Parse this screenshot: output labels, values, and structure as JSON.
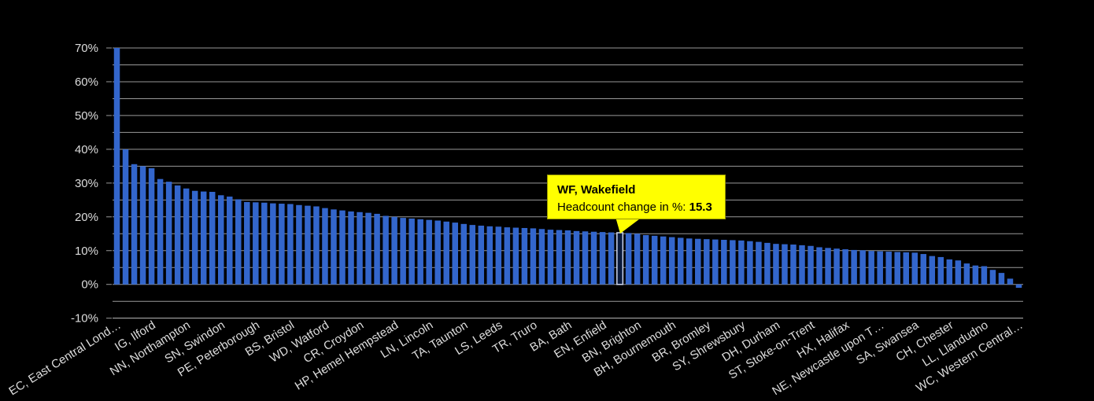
{
  "chart_data": {
    "type": "bar",
    "title": "",
    "xlabel": "",
    "ylabel": "Headcount change in %",
    "ylim": [
      -10,
      70
    ],
    "y_tick_step": 10,
    "y_grid_step": 5,
    "y_tick_suffix": "%",
    "grid": "on",
    "legend": "off",
    "values": [
      70,
      40,
      35.6,
      35,
      34.4,
      31.2,
      30.4,
      29.3,
      28.4,
      27.7,
      27.5,
      27.4,
      26.4,
      26,
      25.2,
      24.4,
      24.3,
      24.2,
      24,
      23.9,
      23.8,
      23.5,
      23.3,
      23.1,
      22.6,
      22.2,
      21.9,
      21.6,
      21.4,
      21.2,
      20.9,
      20.3,
      20,
      19.7,
      19.5,
      19.3,
      19.1,
      18.9,
      18.6,
      18.3,
      17.9,
      17.6,
      17.4,
      17.2,
      17.1,
      16.9,
      16.8,
      16.7,
      16.6,
      16.4,
      16.2,
      16.1,
      16,
      15.8,
      15.7,
      15.6,
      15.5,
      15.4,
      15.3,
      15.2,
      15,
      14.6,
      14.4,
      14.2,
      14,
      13.8,
      13.6,
      13.5,
      13.4,
      13.3,
      13.2,
      13.1,
      13,
      12.8,
      12.6,
      12.3,
      12,
      11.9,
      11.8,
      11.6,
      11.4,
      11,
      10.8,
      10.6,
      10.4,
      10.2,
      10.1,
      9.9,
      9.8,
      9.7,
      9.6,
      9.5,
      9.4,
      9,
      8.4,
      8.1,
      7.4,
      7.1,
      6.2,
      5.6,
      5.4,
      4.3,
      3.4,
      1.7,
      -1
    ],
    "x_tick_labels": [
      {
        "index": 0,
        "label": "EC, East Central Lond…"
      },
      {
        "index": 4,
        "label": "IG, Ilford"
      },
      {
        "index": 8,
        "label": "NN, Northampton"
      },
      {
        "index": 12,
        "label": "SN, Swindon"
      },
      {
        "index": 16,
        "label": "PE, Peterborough"
      },
      {
        "index": 20,
        "label": "BS, Bristol"
      },
      {
        "index": 24,
        "label": "WD, Watford"
      },
      {
        "index": 28,
        "label": "CR, Croydon"
      },
      {
        "index": 32,
        "label": "HP, Hemel Hempstead"
      },
      {
        "index": 36,
        "label": "LN, Lincoln"
      },
      {
        "index": 40,
        "label": "TA, Taunton"
      },
      {
        "index": 44,
        "label": "LS, Leeds"
      },
      {
        "index": 48,
        "label": "TR, Truro"
      },
      {
        "index": 52,
        "label": "BA, Bath"
      },
      {
        "index": 56,
        "label": "EN, Enfield"
      },
      {
        "index": 60,
        "label": "BN, Brighton"
      },
      {
        "index": 64,
        "label": "BH, Bournemouth"
      },
      {
        "index": 68,
        "label": "BR, Bromley"
      },
      {
        "index": 72,
        "label": "SY, Shrewsbury"
      },
      {
        "index": 76,
        "label": "DH, Durham"
      },
      {
        "index": 80,
        "label": "ST, Stoke-on-Trent"
      },
      {
        "index": 84,
        "label": "HX, Halifax"
      },
      {
        "index": 88,
        "label": "NE, Newcastle upon T…"
      },
      {
        "index": 92,
        "label": "SA, Swansea"
      },
      {
        "index": 96,
        "label": "CH, Chester"
      },
      {
        "index": 100,
        "label": "LL, Llandudno"
      },
      {
        "index": 104,
        "label": "WC, Western Central…"
      }
    ],
    "highlight": {
      "index": 58,
      "name": "WF, Wakefield",
      "value": 15.3
    }
  },
  "tooltip": {
    "title": "WF, Wakefield",
    "metric_label": "Headcount change in %: ",
    "value_text": "15.3"
  },
  "colors": {
    "background": "#000000",
    "bar": "#3366cc",
    "highlight_fill": "#0a1a3c",
    "highlight_stroke": "#ccd6f0",
    "gridline": "#999999",
    "axis_line": "#bbbbbb",
    "tick_label": "#dddddd",
    "tooltip_bg": "#ffff00",
    "tooltip_text": "#000000"
  }
}
